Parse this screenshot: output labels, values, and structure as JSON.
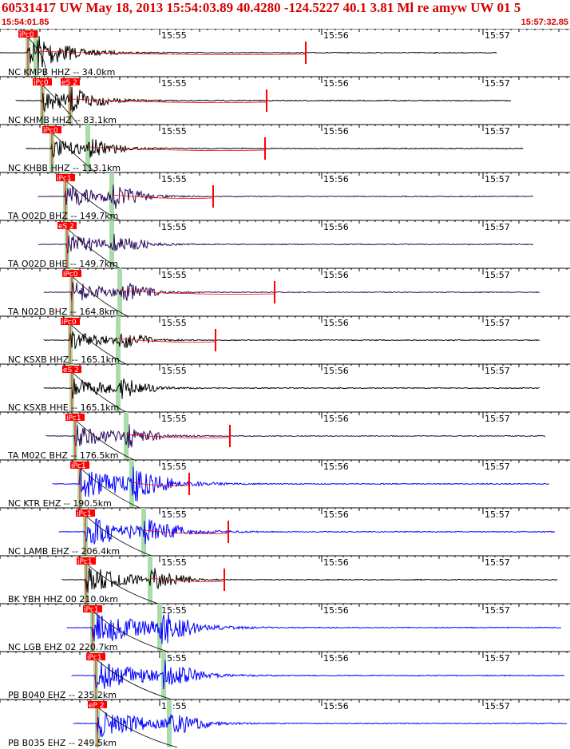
{
  "header": {
    "title": "60531417 UW May 18, 2013 15:54:03.89   40.4280 -124.5227 40.1 3.81 Ml re amyw UW 01   5",
    "start_time": "15:54:01.85",
    "end_time": "15:57:32.85"
  },
  "time_ticks": [
    "15:55",
    "15:56",
    "15:57"
  ],
  "colors": {
    "title": "#d40000",
    "pick": "#ff0000",
    "theoretical_band": "#a8dca8",
    "trace_black": "#000000",
    "trace_purple": "#2a0a5a",
    "trace_blue": "#0000ff"
  },
  "traces": [
    {
      "label": "NC KMPB HHZ -- 34.0km",
      "color": "black",
      "picks": [
        "iPc0",
        "",
        ""
      ]
    },
    {
      "label": "NC KHMB HHZ -- 83.1km",
      "color": "black",
      "picks": [
        "iPc0",
        "eS 2"
      ]
    },
    {
      "label": "NC KHBB HHZ -- 113.1km",
      "color": "black",
      "picks": [
        "iPc0"
      ]
    },
    {
      "label": "TA O02D BHZ -- 149.7km",
      "color": "purple",
      "picks": [
        "iPc1"
      ]
    },
    {
      "label": "TA O02D BHE -- 149.7km",
      "color": "purple",
      "picks": [
        "eS 2"
      ]
    },
    {
      "label": "TA N02D BHZ -- 164.8km",
      "color": "purple",
      "picks": [
        "iPc0"
      ]
    },
    {
      "label": "NC KSXB HHZ -- 165.1km",
      "color": "black",
      "picks": [
        "iPc0"
      ]
    },
    {
      "label": "NC KSXB HHE -- 165.1km",
      "color": "black",
      "picks": [
        "eS 2"
      ]
    },
    {
      "label": "TA M02C BHZ -- 176.5km",
      "color": "purple",
      "picks": [
        "iPc1"
      ]
    },
    {
      "label": "NC KTR EHZ -- 190.5km",
      "color": "blue",
      "picks": [
        "iPc1"
      ]
    },
    {
      "label": "NC LAMB EHZ -- 206.4km",
      "color": "blue",
      "picks": [
        "iPc1"
      ]
    },
    {
      "label": "BK YBH HHZ 00 210.0km",
      "color": "black",
      "picks": [
        "iPc1"
      ]
    },
    {
      "label": "NC LGB EHZ 02 220.7km",
      "color": "blue",
      "picks": [
        "iPc1"
      ]
    },
    {
      "label": "PB B040 EHZ -- 235.2km",
      "color": "blue",
      "picks": [
        "iPc1"
      ]
    },
    {
      "label": "PB B035 EHZ -- 249.5km",
      "color": "blue",
      "picks": [
        "eP 2"
      ]
    }
  ]
}
